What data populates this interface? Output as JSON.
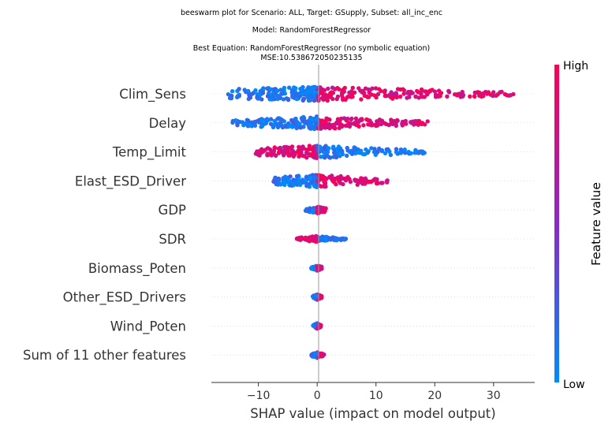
{
  "chart_data": {
    "type": "scatter",
    "subtype": "beeswarm",
    "title_lines": [
      "beeswarm plot for Scenario: ALL, Target: GSupply, Subset: all_inc_enc",
      "Model: RandomForestRegressor",
      "Best Equation: RandomForestRegressor (no symbolic equation)",
      "MSE:10.538672050235135"
    ],
    "xlabel": "SHAP value (impact on model output)",
    "xlim": [
      -18,
      37
    ],
    "xticks": [
      -10,
      0,
      10,
      20,
      30
    ],
    "xtick_labels": [
      "−10",
      "0",
      "10",
      "20",
      "30"
    ],
    "features": [
      {
        "name": "Clim_Sens",
        "min": -15.5,
        "max": 34,
        "neg_color": "low",
        "spread": 1.0
      },
      {
        "name": "Delay",
        "min": -14.5,
        "max": 19,
        "neg_color": "low",
        "spread": 0.9
      },
      {
        "name": "Temp_Limit",
        "min": -10.5,
        "max": 18.5,
        "neg_color": "high",
        "spread": 0.9
      },
      {
        "name": "Elast_ESD_Driver",
        "min": -7.5,
        "max": 12.5,
        "neg_color": "low",
        "spread": 0.9
      },
      {
        "name": "GDP",
        "min": -2,
        "max": 1.5,
        "neg_color": "low",
        "spread": 0.5
      },
      {
        "name": "SDR",
        "min": -3.5,
        "max": 5,
        "neg_color": "high",
        "spread": 0.4
      },
      {
        "name": "Biomass_Poten",
        "min": -1,
        "max": 0.8,
        "neg_color": "low",
        "spread": 0.4
      },
      {
        "name": "Other_ESD_Drivers",
        "min": -0.8,
        "max": 0.8,
        "neg_color": "low",
        "spread": 0.4
      },
      {
        "name": "Wind_Poten",
        "min": -0.7,
        "max": 0.7,
        "neg_color": "low",
        "spread": 0.4
      },
      {
        "name": "Sum of 11 other features",
        "min": -1,
        "max": 1.2,
        "neg_color": "low",
        "spread": 0.4
      }
    ],
    "colorbar": {
      "label": "Feature value",
      "high": "High",
      "low": "Low"
    },
    "colors": {
      "low": "#008bfb",
      "high": "#ff0052",
      "zero_line": "#999999",
      "grid": "#cccccc"
    },
    "grid": false,
    "legend": "colorbar-right"
  }
}
